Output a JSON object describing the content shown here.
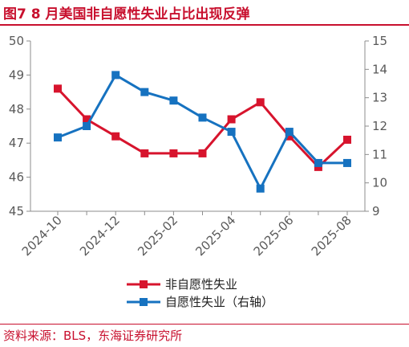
{
  "figure": {
    "title": "图7  8 月美国非自愿性失业占比出现反弹",
    "source": "资料来源：BLS，东海证券研究所"
  },
  "colors": {
    "accent": "#c8102e",
    "series1": "#d7142d",
    "series2": "#1672c0"
  },
  "chart_data": {
    "type": "line",
    "x": [
      "2024-10",
      "2024-11",
      "2024-12",
      "2025-01",
      "2025-02",
      "2025-03",
      "2025-04",
      "2025-05",
      "2025-06",
      "2025-07",
      "2025-08"
    ],
    "x_tick_labels": [
      "2024-10",
      "2024-12",
      "2025-02",
      "2025-04",
      "2025-06",
      "2025-08"
    ],
    "left_axis": {
      "ylim": [
        45,
        50
      ],
      "ticks": [
        "45",
        "46",
        "47",
        "48",
        "49",
        "50"
      ]
    },
    "right_axis": {
      "ylim": [
        9,
        15
      ],
      "ticks": [
        "9",
        "10",
        "11",
        "12",
        "13",
        "14",
        "15"
      ]
    },
    "series": [
      {
        "name": "非自愿性失业",
        "axis": "left",
        "color": "#d7142d",
        "marker": "square",
        "values": [
          48.6,
          47.7,
          47.2,
          46.7,
          46.7,
          46.7,
          47.7,
          48.2,
          47.2,
          46.3,
          47.1
        ]
      },
      {
        "name": "自愿性失业（右轴）",
        "axis": "right",
        "color": "#1672c0",
        "marker": "square",
        "values": [
          11.6,
          12.0,
          13.8,
          13.2,
          12.9,
          12.3,
          11.8,
          9.8,
          11.8,
          10.7,
          10.7
        ]
      }
    ],
    "grid": false,
    "legend_position": "bottom-center"
  }
}
